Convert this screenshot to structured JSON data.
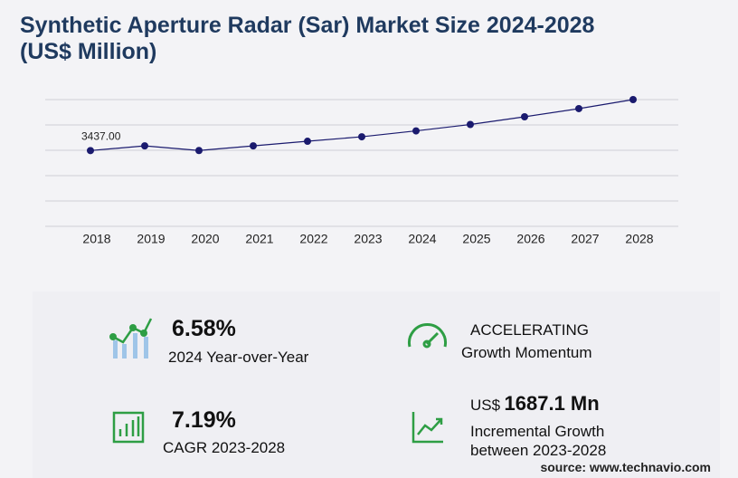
{
  "chart_data": {
    "type": "line",
    "title": "Synthetic Aperture Radar (Sar) Market Size 2024-2028",
    "subtitle": "(US$ Million)",
    "categories": [
      "2018",
      "2019",
      "2020",
      "2021",
      "2022",
      "2023",
      "2024",
      "2025",
      "2026",
      "2027",
      "2028"
    ],
    "values": [
      3437,
      3650,
      3440,
      3650,
      3860,
      4063,
      4330,
      4620,
      4970,
      5340,
      5750
    ],
    "value_labels": [
      "3437.00",
      null,
      null,
      null,
      null,
      null,
      null,
      null,
      null,
      null,
      null
    ],
    "color": "#1a1a6e",
    "ylim": [
      0,
      5750
    ],
    "yticks": [
      0,
      1150,
      2300,
      3450,
      4600,
      5750
    ],
    "grid": true
  },
  "kpis": [
    {
      "value": "6.58%",
      "label": "2024 Year-over-Year"
    },
    {
      "value": "ACCELERATING",
      "label": "Growth Momentum"
    },
    {
      "value": "7.19%",
      "label": "CAGR 2023-2028"
    },
    {
      "unit": "US$",
      "value": "1687.1 Mn",
      "label": "Incremental Growth between 2023-2028"
    }
  ],
  "source": "source: www.technavio.com"
}
